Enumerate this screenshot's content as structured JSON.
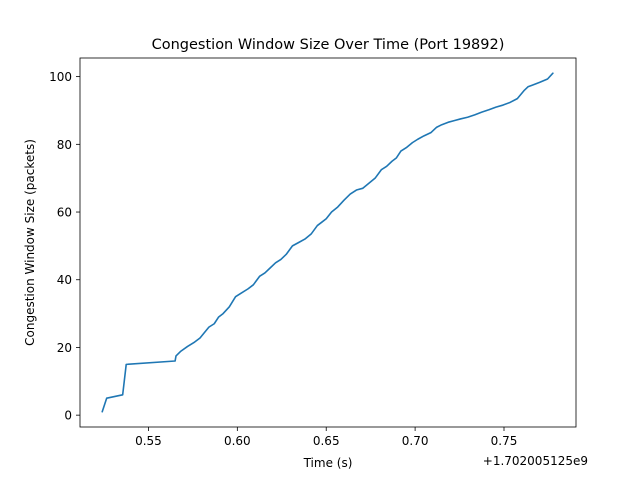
{
  "chart_data": {
    "type": "line",
    "title": "Congestion Window Size Over Time (Port 19892)",
    "xlabel": "Time (s)",
    "ylabel": "Congestion Window Size (packets)",
    "x_offset_label": "+1.702005125e9",
    "xlim": [
      0.5115,
      0.7905
    ],
    "ylim": [
      -3.5,
      105.5
    ],
    "x_ticks": [
      0.55,
      0.6,
      0.65,
      0.7,
      0.75
    ],
    "x_tick_labels": [
      "0.55",
      "0.60",
      "0.65",
      "0.70",
      "0.75"
    ],
    "y_ticks": [
      0,
      20,
      40,
      60,
      80,
      100
    ],
    "y_tick_labels": [
      "0",
      "20",
      "40",
      "60",
      "80",
      "100"
    ],
    "grid": false,
    "line_color": "#1f77b4",
    "series": [
      {
        "x": [
          0.524,
          0.5265,
          0.5355,
          0.5375,
          0.565,
          0.5655,
          0.568,
          0.572,
          0.576,
          0.579,
          0.581,
          0.584,
          0.587,
          0.5895,
          0.592,
          0.5955,
          0.599,
          0.602,
          0.606,
          0.609,
          0.6125,
          0.6155,
          0.6185,
          0.6215,
          0.6245,
          0.6275,
          0.631,
          0.6345,
          0.638,
          0.6415,
          0.645,
          0.6475,
          0.65,
          0.653,
          0.6565,
          0.66,
          0.6635,
          0.667,
          0.6705,
          0.674,
          0.6775,
          0.681,
          0.684,
          0.687,
          0.6895,
          0.692,
          0.695,
          0.6985,
          0.7015,
          0.705,
          0.709,
          0.712,
          0.715,
          0.7185,
          0.722,
          0.7255,
          0.7295,
          0.7335,
          0.7375,
          0.7415,
          0.7455,
          0.7495,
          0.7535,
          0.7575,
          0.7615,
          0.7635,
          0.766,
          0.77,
          0.7745,
          0.7775
        ],
        "y": [
          1,
          5,
          6,
          15,
          16,
          17.5,
          18.8,
          20.3,
          21.6,
          22.8,
          24.1,
          26,
          27,
          29,
          30,
          32,
          35,
          36,
          37.3,
          38.5,
          41,
          42,
          43.5,
          45,
          46,
          47.5,
          50,
          51,
          52,
          53.5,
          56,
          57,
          58,
          60,
          61.5,
          63.5,
          65.3,
          66.5,
          67,
          68.5,
          70,
          72.5,
          73.5,
          75,
          76,
          78,
          79,
          80.5,
          81.5,
          82.5,
          83.5,
          85,
          85.8,
          86.5,
          87,
          87.5,
          88,
          88.7,
          89.5,
          90.2,
          91,
          91.6,
          92.4,
          93.5,
          96,
          97,
          97.5,
          98.3,
          99.3,
          101
        ]
      }
    ]
  }
}
